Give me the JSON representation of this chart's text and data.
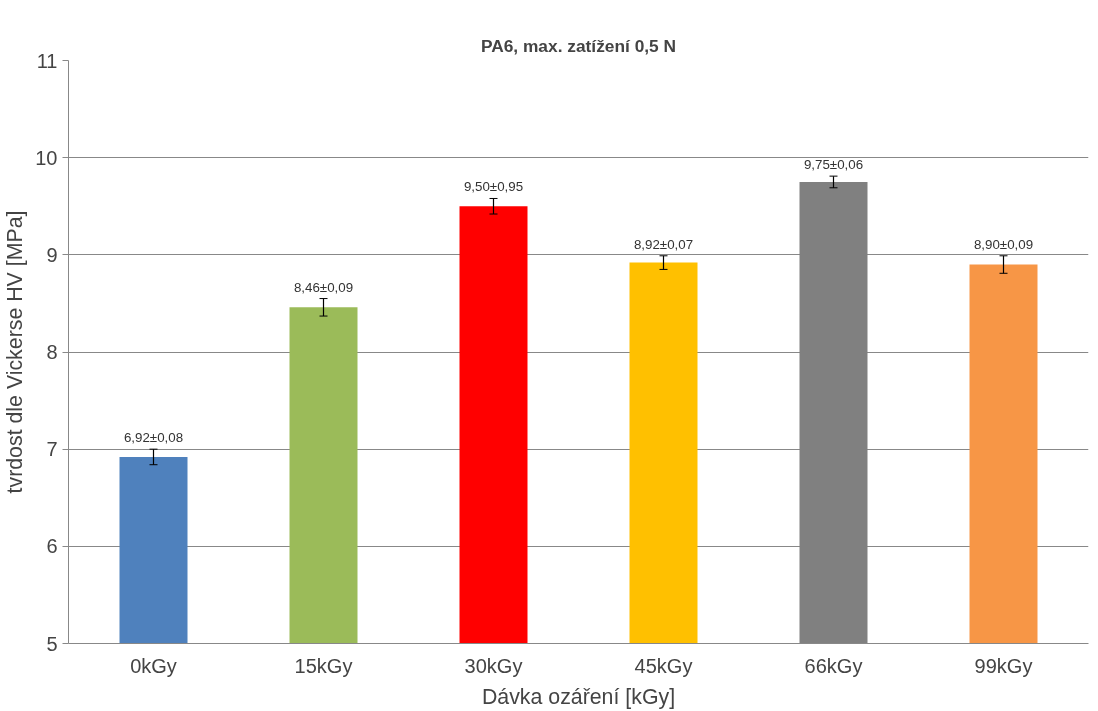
{
  "chart_data": {
    "type": "bar",
    "title": "PA6, max. zatížení 0,5 N",
    "xlabel": "Dávka ozáření [kGy]",
    "ylabel": "tvrdost dle Vickerse HV [MPa]",
    "categories": [
      "0kGy",
      "15kGy",
      "30kGy",
      "45kGy",
      "66kGy",
      "99kGy"
    ],
    "values": [
      6.92,
      8.46,
      9.5,
      8.92,
      9.75,
      8.9
    ],
    "colors": [
      "#4f81bd",
      "#9bbb59",
      "#ff0000",
      "#ffc000",
      "#808080",
      "#f79646"
    ],
    "errors": [
      0.08,
      0.09,
      0.08,
      0.07,
      0.06,
      0.09
    ],
    "value_labels": [
      "6,92±0,08",
      "8,46±0,09",
      "9,50±0,95",
      "8,92±0,07",
      "9,75±0,06",
      "8,90±0,09"
    ],
    "ylim": [
      5,
      11
    ],
    "yticks": [
      5,
      6,
      7,
      8,
      9,
      10,
      11
    ],
    "grid": "y"
  }
}
